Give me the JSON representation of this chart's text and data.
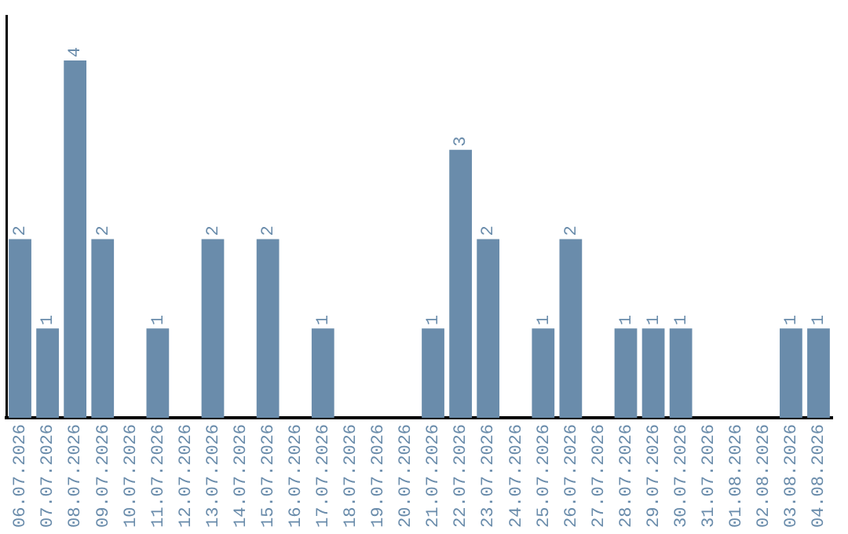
{
  "chart_data": {
    "type": "bar",
    "categories": [
      "06.07.2026",
      "07.07.2026",
      "08.07.2026",
      "09.07.2026",
      "10.07.2026",
      "11.07.2026",
      "12.07.2026",
      "13.07.2026",
      "14.07.2026",
      "15.07.2026",
      "16.07.2026",
      "17.07.2026",
      "18.07.2026",
      "19.07.2026",
      "20.07.2026",
      "21.07.2026",
      "22.07.2026",
      "23.07.2026",
      "24.07.2026",
      "25.07.2026",
      "26.07.2026",
      "27.07.2026",
      "28.07.2026",
      "29.07.2026",
      "30.07.2026",
      "31.07.2026",
      "01.08.2026",
      "02.08.2026",
      "03.08.2026",
      "04.08.2026"
    ],
    "values": [
      2,
      1,
      4,
      2,
      0,
      1,
      0,
      2,
      0,
      2,
      0,
      1,
      0,
      0,
      0,
      1,
      3,
      2,
      0,
      1,
      2,
      0,
      1,
      1,
      1,
      0,
      0,
      0,
      1,
      1
    ],
    "value_labels": [
      "2",
      "1",
      "4",
      "2",
      null,
      "1",
      null,
      "2",
      null,
      "2",
      null,
      "1",
      null,
      null,
      null,
      "1",
      "3",
      "2",
      null,
      "1",
      "2",
      null,
      "1",
      "1",
      "1",
      null,
      null,
      null,
      "1",
      "1"
    ],
    "color": "#6a8cab",
    "tick_labels": "x",
    "grid": false,
    "legend": false
  }
}
